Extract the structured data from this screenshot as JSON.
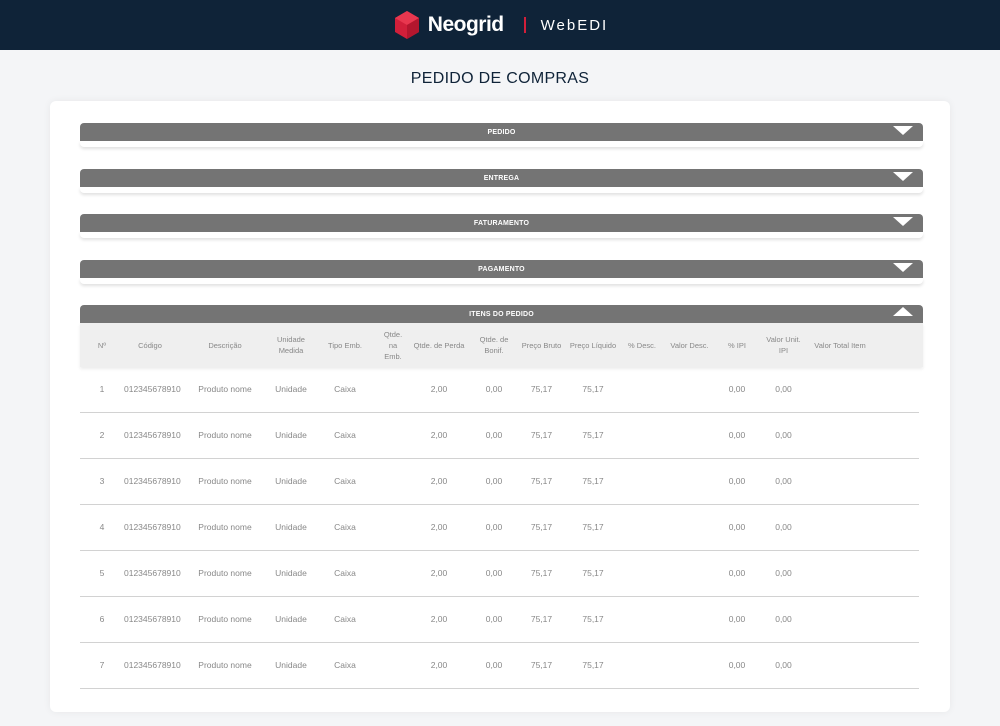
{
  "header": {
    "brand": "Neogrid",
    "product": "WebEDI"
  },
  "page": {
    "title": "PEDIDO DE COMPRAS"
  },
  "sections": [
    {
      "label": "PEDIDO",
      "state": "collapsed"
    },
    {
      "label": "ENTREGA",
      "state": "collapsed"
    },
    {
      "label": "FATURAMENTO",
      "state": "collapsed"
    },
    {
      "label": "PAGAMENTO",
      "state": "collapsed"
    },
    {
      "label": "ITENS DO PEDIDO",
      "state": "expanded"
    }
  ],
  "colors": {
    "topbar": "#0f2338",
    "accent": "#d11f3a",
    "section_bar": "#747474"
  },
  "table": {
    "columns": [
      "Nº",
      "Código",
      "Descrição",
      "Unidade Medida",
      "Tipo Emb.",
      "Qtde. na Emb.",
      "Qtde. de Perda",
      "Qtde. de Bonif.",
      "Preço Bruto",
      "Preço Líquido",
      "% Desc.",
      "Valor Desc.",
      "% IPI",
      "Valor Unit. IPI",
      "Valor Total Item"
    ],
    "rows": [
      [
        "1",
        "012345678910",
        "Produto nome",
        "Unidade",
        "Caixa",
        "",
        "2,00",
        "0,00",
        "75,17",
        "75,17",
        "",
        "",
        "0,00",
        "0,00",
        ""
      ],
      [
        "2",
        "012345678910",
        "Produto nome",
        "Unidade",
        "Caixa",
        "",
        "2,00",
        "0,00",
        "75,17",
        "75,17",
        "",
        "",
        "0,00",
        "0,00",
        ""
      ],
      [
        "3",
        "012345678910",
        "Produto nome",
        "Unidade",
        "Caixa",
        "",
        "2,00",
        "0,00",
        "75,17",
        "75,17",
        "",
        "",
        "0,00",
        "0,00",
        ""
      ],
      [
        "4",
        "012345678910",
        "Produto nome",
        "Unidade",
        "Caixa",
        "",
        "2,00",
        "0,00",
        "75,17",
        "75,17",
        "",
        "",
        "0,00",
        "0,00",
        ""
      ],
      [
        "5",
        "012345678910",
        "Produto nome",
        "Unidade",
        "Caixa",
        "",
        "2,00",
        "0,00",
        "75,17",
        "75,17",
        "",
        "",
        "0,00",
        "0,00",
        ""
      ],
      [
        "6",
        "012345678910",
        "Produto nome",
        "Unidade",
        "Caixa",
        "",
        "2,00",
        "0,00",
        "75,17",
        "75,17",
        "",
        "",
        "0,00",
        "0,00",
        ""
      ],
      [
        "7",
        "012345678910",
        "Produto nome",
        "Unidade",
        "Caixa",
        "",
        "2,00",
        "0,00",
        "75,17",
        "75,17",
        "",
        "",
        "0,00",
        "0,00",
        ""
      ]
    ]
  }
}
